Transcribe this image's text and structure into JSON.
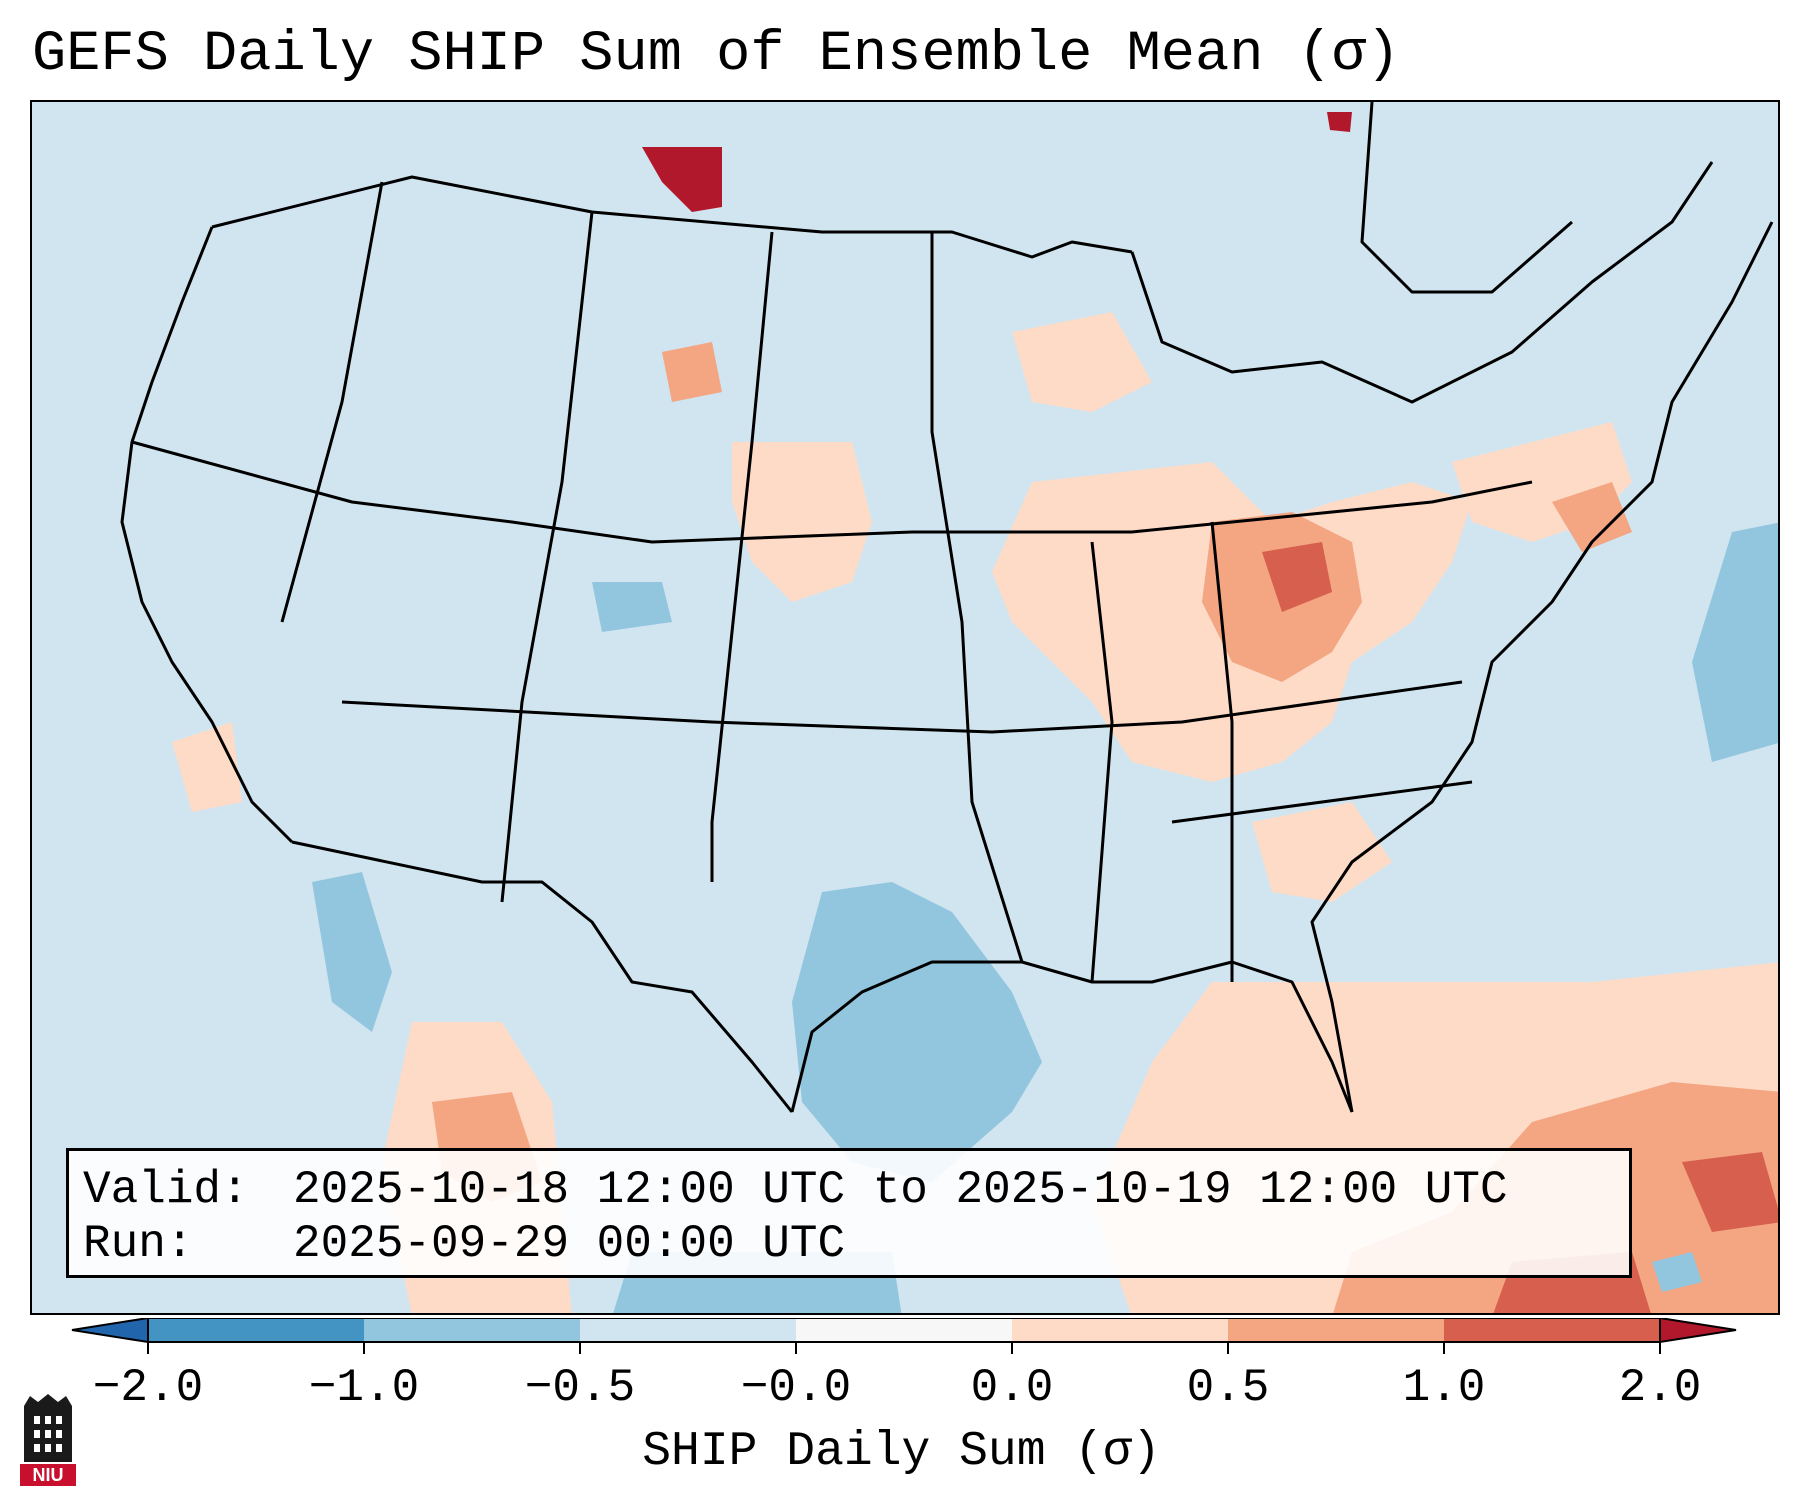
{
  "title": "GEFS Daily SHIP Sum of Ensemble Mean (σ)",
  "info_box": {
    "valid_label": "Valid:",
    "valid_value": "2025-10-18 12:00 UTC to 2025-10-19 12:00 UTC",
    "run_label": "Run:",
    "run_value": "2025-09-29 00:00 UTC"
  },
  "colorbar": {
    "label": "SHIP Daily Sum (σ)",
    "ticks": [
      "−2.0",
      "−1.0",
      "−0.5",
      "−0.0",
      "0.0",
      "0.5",
      "1.0",
      "2.0"
    ],
    "colors": [
      "#2166ac",
      "#4393c3",
      "#92c5de",
      "#d1e5f0",
      "#f7f7f7",
      "#fddbc7",
      "#f4a582",
      "#d6604d",
      "#b2182b"
    ],
    "extend": "both"
  },
  "logo": {
    "text": "NIU",
    "color": "#c8102e"
  },
  "map": {
    "background_color": "#d1e5f0",
    "region": "Contiguous United States"
  }
}
